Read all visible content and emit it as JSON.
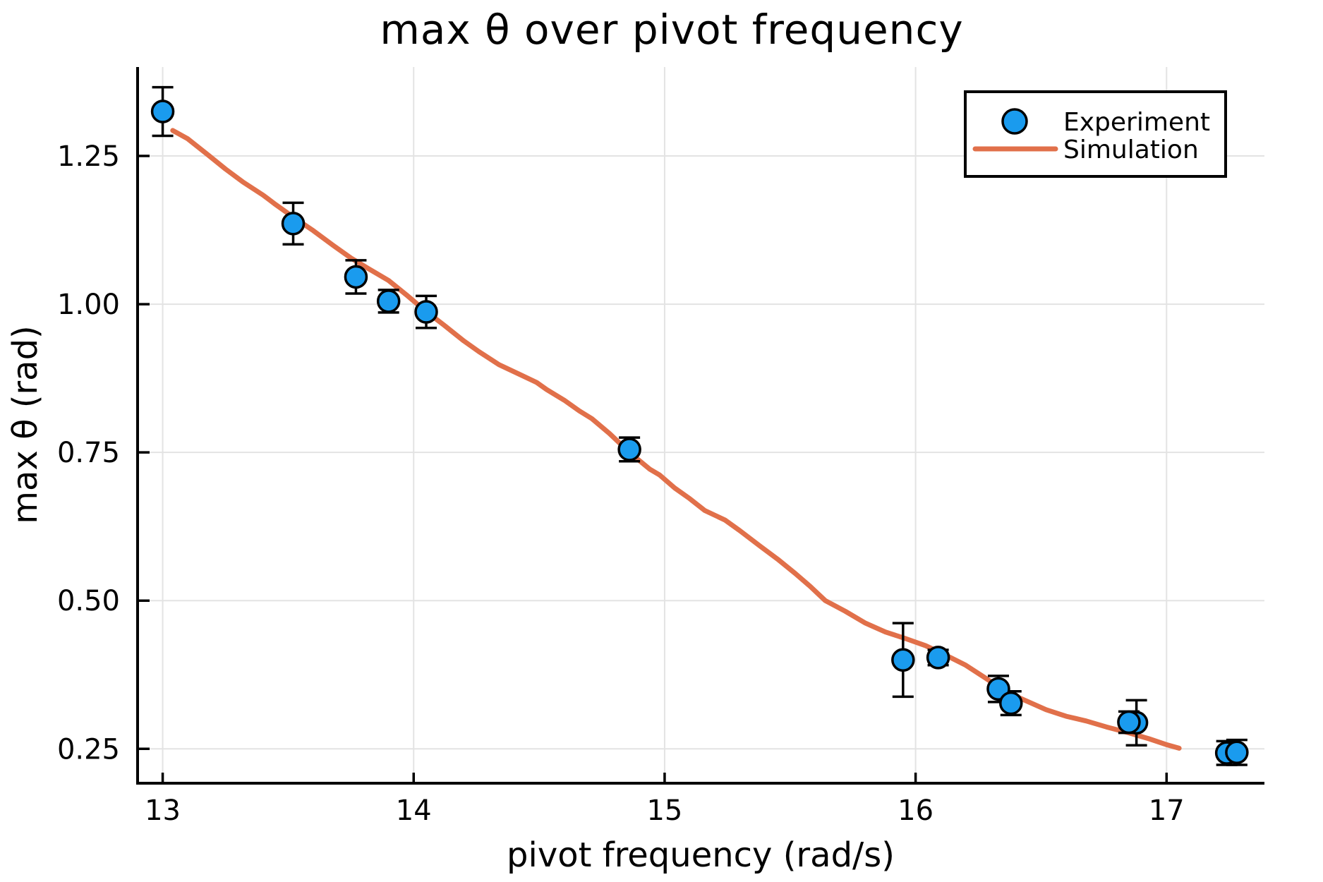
{
  "title": "max θ over pivot frequency",
  "chart_data": {
    "type": "scatter",
    "title": "max θ over pivot frequency",
    "xlabel": "pivot frequency (rad/s)",
    "ylabel": "max θ (rad)",
    "xlim": [
      12.9,
      17.39
    ],
    "ylim": [
      0.192,
      1.4
    ],
    "x_ticks": [
      13,
      14,
      15,
      16,
      17
    ],
    "x_tick_labels": [
      "13",
      "14",
      "15",
      "16",
      "17"
    ],
    "y_ticks": [
      0.25,
      0.5,
      0.75,
      1.0,
      1.25
    ],
    "y_tick_labels": [
      "0.25",
      "0.50",
      "0.75",
      "1.00",
      "1.25"
    ],
    "grid": true,
    "frame": "left-bottom-spines",
    "legend": {
      "position": "top-right",
      "items": [
        {
          "label": "Experiment",
          "type": "marker"
        },
        {
          "label": "Simulation",
          "type": "line"
        }
      ]
    },
    "series": [
      {
        "name": "Experiment",
        "type": "scatter",
        "marker": "circle",
        "color": "#1A9BEE",
        "edge_color": "#000000",
        "x": [
          13.0,
          13.52,
          13.77,
          13.9,
          14.05,
          14.86,
          15.95,
          16.09,
          16.33,
          16.38,
          16.88,
          16.85,
          17.24,
          17.28
        ],
        "y": [
          1.325,
          1.136,
          1.046,
          1.005,
          0.987,
          0.755,
          0.4,
          0.404,
          0.351,
          0.327,
          0.294,
          0.295,
          0.243,
          0.244
        ],
        "yerr": [
          0.041,
          0.035,
          0.028,
          0.019,
          0.027,
          0.02,
          0.062,
          0.013,
          0.022,
          0.02,
          0.038,
          0.018,
          0.02,
          0.021
        ]
      },
      {
        "name": "Simulation",
        "type": "line",
        "color": "#E1704A",
        "x": [
          13.04,
          13.1,
          13.18,
          13.25,
          13.32,
          13.4,
          13.45,
          13.52,
          13.6,
          13.68,
          13.75,
          13.82,
          13.9,
          13.97,
          14.04,
          14.12,
          14.2,
          14.26,
          14.34,
          14.42,
          14.49,
          14.53,
          14.6,
          14.66,
          14.71,
          14.78,
          14.86,
          14.94,
          14.98,
          15.04,
          15.1,
          15.16,
          15.24,
          15.3,
          15.38,
          15.45,
          15.52,
          15.58,
          15.64,
          15.72,
          15.8,
          15.88,
          15.96,
          16.04,
          16.12,
          16.2,
          16.28,
          16.36,
          16.44,
          16.52,
          16.6,
          16.68,
          16.76,
          16.85,
          16.93,
          17.0,
          17.05
        ],
        "y": [
          1.293,
          1.279,
          1.252,
          1.228,
          1.206,
          1.184,
          1.168,
          1.147,
          1.124,
          1.099,
          1.078,
          1.06,
          1.04,
          1.016,
          0.991,
          0.965,
          0.938,
          0.92,
          0.898,
          0.882,
          0.868,
          0.856,
          0.838,
          0.82,
          0.807,
          0.782,
          0.75,
          0.722,
          0.712,
          0.69,
          0.672,
          0.652,
          0.636,
          0.618,
          0.592,
          0.57,
          0.546,
          0.524,
          0.5,
          0.482,
          0.462,
          0.447,
          0.436,
          0.424,
          0.408,
          0.391,
          0.369,
          0.346,
          0.331,
          0.316,
          0.305,
          0.297,
          0.287,
          0.277,
          0.267,
          0.257,
          0.251
        ]
      }
    ]
  },
  "colors": {
    "experiment_fill": "#1A9BEE",
    "simulation_line": "#E1704A",
    "gridline": "#E3E3E3",
    "axis": "#000000",
    "background": "#FFFFFF"
  }
}
